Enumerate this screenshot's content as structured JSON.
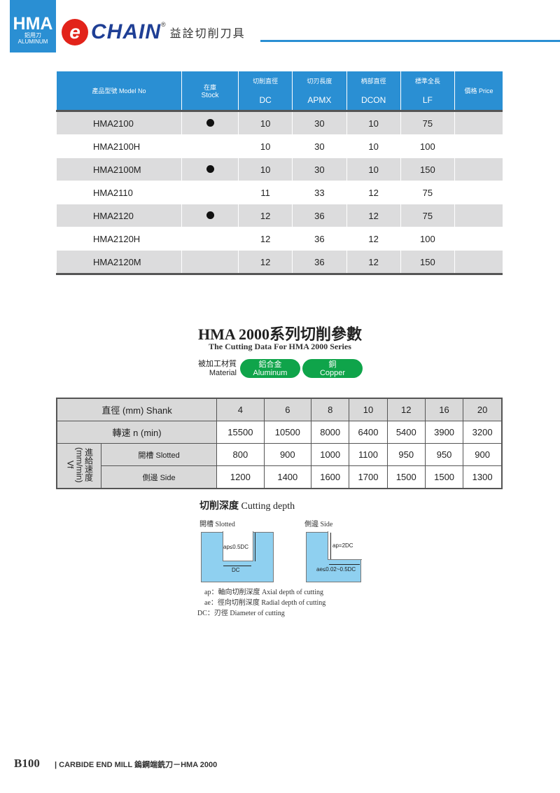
{
  "header": {
    "badge_title": "HMA",
    "badge_zh": "鋁用刀",
    "badge_en": "ALUMINUM",
    "logo_letter": "e",
    "brand": "CHAIN",
    "reg": "®",
    "company_zh": "益詮切削刀具",
    "accent": "#2a8fd3"
  },
  "products": {
    "columns": [
      {
        "zh": "產品型號 Model No",
        "code": ""
      },
      {
        "zh": "在庫",
        "code": "Stock"
      },
      {
        "zh": "切削直徑",
        "code": "DC"
      },
      {
        "zh": "切刃長度",
        "code": "APMX"
      },
      {
        "zh": "柄部直徑",
        "code": "DCON"
      },
      {
        "zh": "標準全長",
        "code": "LF"
      },
      {
        "zh": "價格 Price",
        "code": ""
      }
    ],
    "rows": [
      {
        "model": "HMA2100",
        "stock": true,
        "dc": "10",
        "apmx": "30",
        "dcon": "10",
        "lf": "75",
        "price": ""
      },
      {
        "model": "HMA2100H",
        "stock": false,
        "dc": "10",
        "apmx": "30",
        "dcon": "10",
        "lf": "100",
        "price": ""
      },
      {
        "model": "HMA2100M",
        "stock": true,
        "dc": "10",
        "apmx": "30",
        "dcon": "10",
        "lf": "150",
        "price": ""
      },
      {
        "model": "HMA2110",
        "stock": false,
        "dc": "11",
        "apmx": "33",
        "dcon": "12",
        "lf": "75",
        "price": ""
      },
      {
        "model": "HMA2120",
        "stock": true,
        "dc": "12",
        "apmx": "36",
        "dcon": "12",
        "lf": "75",
        "price": ""
      },
      {
        "model": "HMA2120H",
        "stock": false,
        "dc": "12",
        "apmx": "36",
        "dcon": "12",
        "lf": "100",
        "price": ""
      },
      {
        "model": "HMA2120M",
        "stock": false,
        "dc": "12",
        "apmx": "36",
        "dcon": "12",
        "lf": "150",
        "price": ""
      }
    ]
  },
  "cutting": {
    "title": "HMA 2000系列切削參數",
    "subtitle": "The Cutting Data For HMA 2000 Series",
    "material_label_zh": "被加工材質",
    "material_label_en": "Material",
    "materials": [
      {
        "zh": "鋁合金",
        "en": "Aluminum"
      },
      {
        "zh": "銅",
        "en": "Copper"
      }
    ],
    "material_color": "#0fa44a",
    "shank_label": "直徑 (mm) Shank",
    "shanks": [
      "4",
      "6",
      "8",
      "10",
      "12",
      "16",
      "20"
    ],
    "speed_label": "轉速 n (min)",
    "speeds": [
      "15500",
      "10500",
      "8000",
      "6400",
      "5400",
      "3900",
      "3200"
    ],
    "feed_label": "進給速度 (mm/min) Vf",
    "slotted_label": "開槽 Slotted",
    "slotted": [
      "800",
      "900",
      "1000",
      "1100",
      "950",
      "950",
      "900"
    ],
    "side_label": "側邊 Side",
    "side": [
      "1200",
      "1400",
      "1600",
      "1700",
      "1500",
      "1500",
      "1300"
    ]
  },
  "depth": {
    "title_zh": "切削深度",
    "title_en": "Cutting depth",
    "slotted": "開槽 Slotted",
    "side": "側邊 Side",
    "slot_ap": "ap≤0.5DC",
    "slot_dc": "DC",
    "side_ap": "ap=2DC",
    "side_ae": "ae≤0.02~0.5DC",
    "legend": [
      "ap：軸向切削深度 Axial depth of cutting",
      "ae：徑向切削深度 Radial depth of cutting",
      "DC：刃徑 Diameter of cutting"
    ]
  },
  "footer": {
    "page": "B100",
    "text": "| CARBIDE END MILL 鎢鋼端銑刀－HMA 2000"
  }
}
